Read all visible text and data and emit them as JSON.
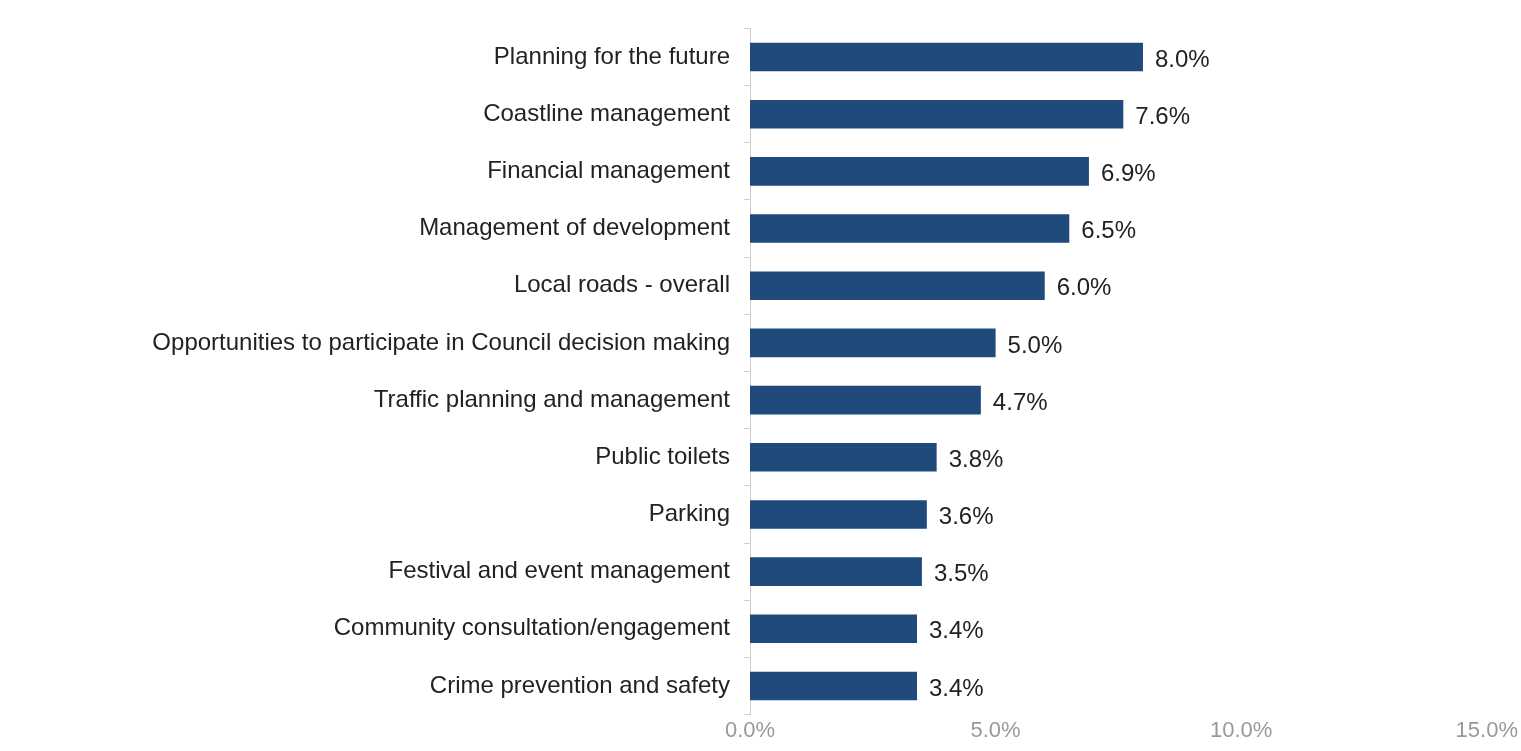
{
  "chart_data": {
    "type": "bar",
    "orientation": "horizontal",
    "categories": [
      "Planning for the future",
      "Coastline management",
      "Financial management",
      "Management of development",
      "Local roads - overall",
      "Opportunities to participate in Council decision making",
      "Traffic planning and management",
      "Public toilets",
      "Parking",
      "Festival and event management",
      "Community consultation/engagement",
      "Crime prevention and safety"
    ],
    "values": [
      8.0,
      7.6,
      6.9,
      6.5,
      6.0,
      5.0,
      4.7,
      3.8,
      3.6,
      3.5,
      3.4,
      3.4
    ],
    "value_labels": [
      "8.0%",
      "7.6%",
      "6.9%",
      "6.5%",
      "6.0%",
      "5.0%",
      "4.7%",
      "3.8%",
      "3.6%",
      "3.5%",
      "3.4%",
      "3.4%"
    ],
    "color": "#214a7c",
    "xlim": [
      0,
      15
    ],
    "xticks": [
      {
        "value": 0,
        "label": "0.0%"
      },
      {
        "value": 5,
        "label": "5.0%"
      },
      {
        "value": 10,
        "label": "10.0%"
      },
      {
        "value": 15,
        "label": "15.0%"
      }
    ],
    "grid": false,
    "legend": false
  }
}
